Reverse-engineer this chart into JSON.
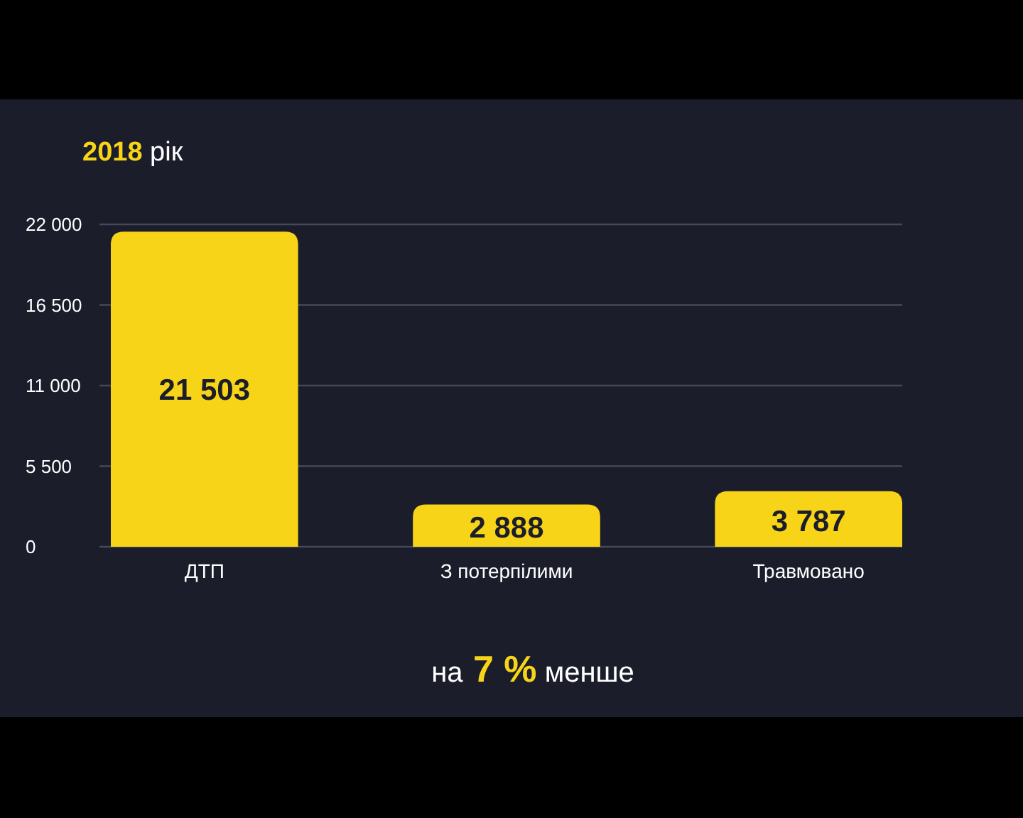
{
  "chart_data": {
    "type": "bar",
    "title": "2018 рік",
    "categories": [
      "ДТП",
      "З потерпілими",
      "Травмовано"
    ],
    "values": [
      21503,
      2888,
      3787
    ],
    "color": "#f7d417",
    "value_labels": [
      "21 503",
      "2 888",
      "3 787"
    ],
    "ylim": [
      0,
      22000
    ],
    "yticks": [
      0,
      {
        "value": 5500,
        "label": "5 500"
      },
      {
        "value": 11000,
        "label": "11 000"
      },
      {
        "value": 16500,
        "label": "16 500"
      },
      {
        "value": 22000,
        "label": "22 000"
      }
    ],
    "grid": "y",
    "annotations": [
      "на 7 % менше"
    ]
  }
}
